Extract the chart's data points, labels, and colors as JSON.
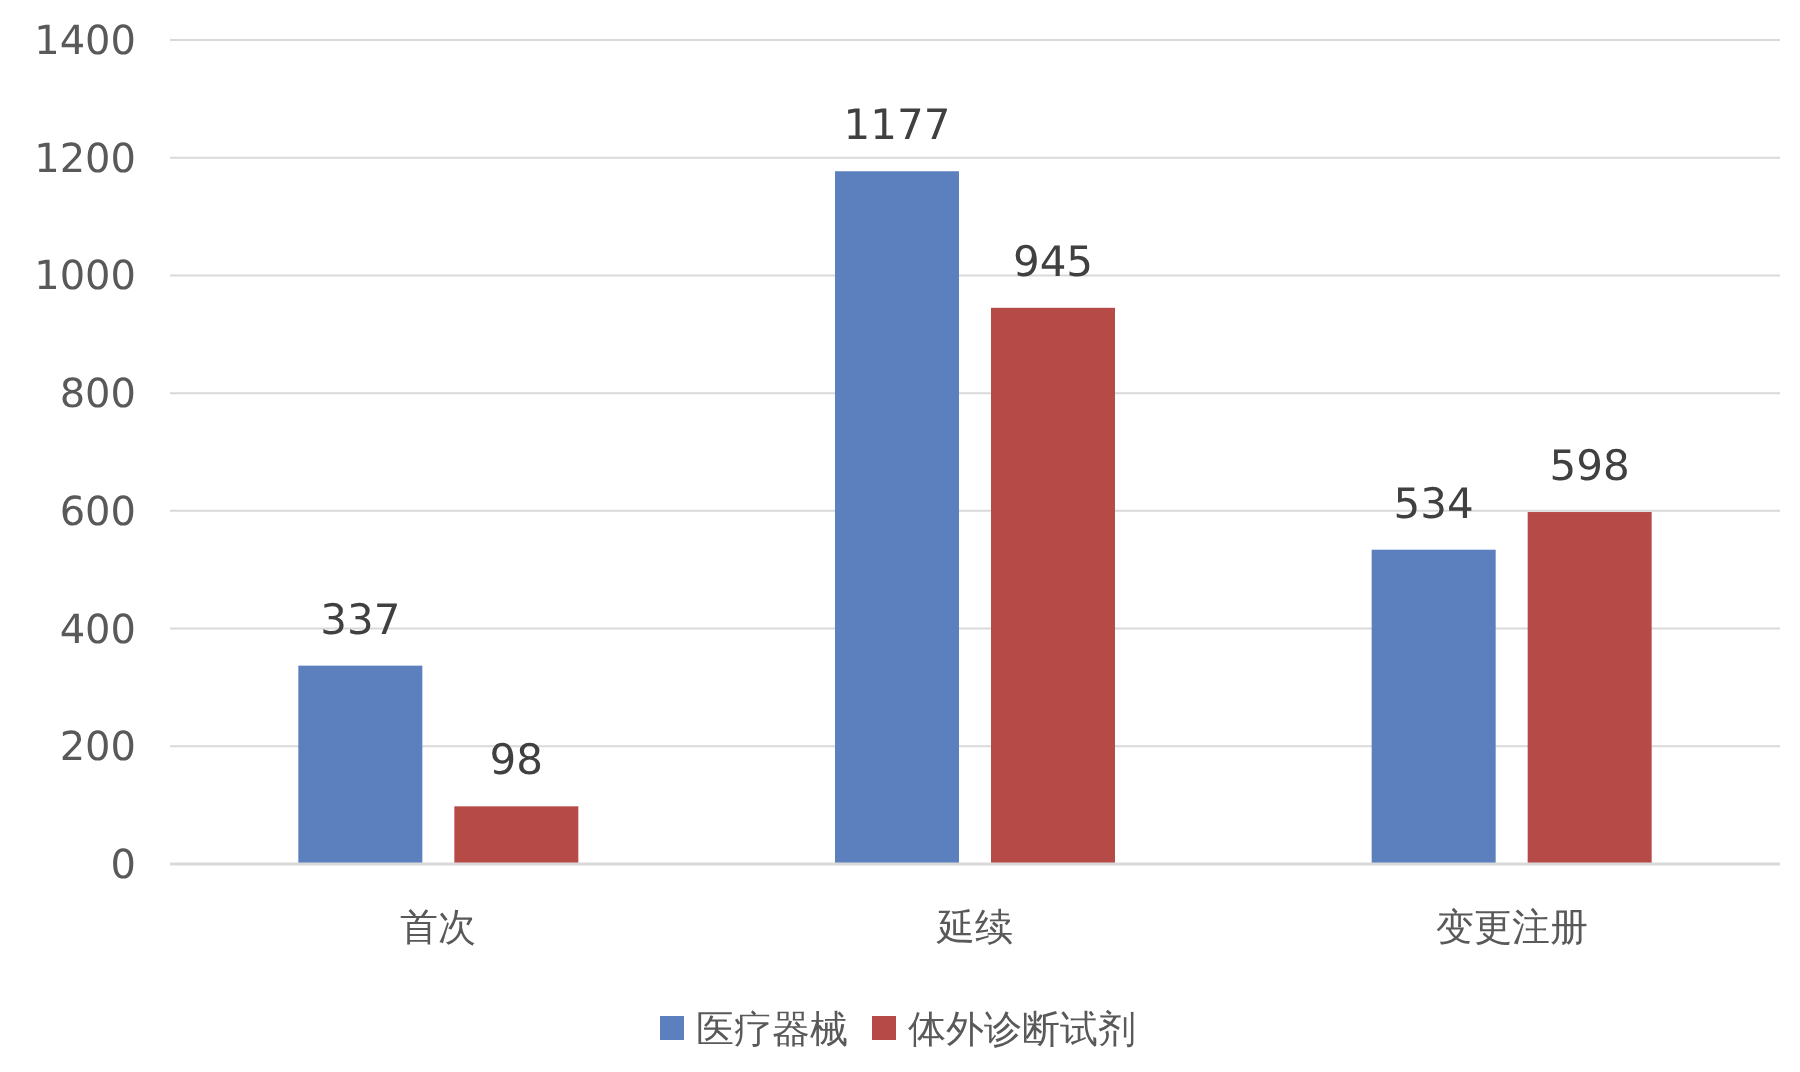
{
  "chart_data": {
    "type": "bar",
    "categories": [
      "首次",
      "延续",
      "变更注册"
    ],
    "series": [
      {
        "name": "医疗器械",
        "color": "#5b80bd",
        "values": [
          337,
          1177,
          534
        ]
      },
      {
        "name": "体外诊断试剂",
        "color": "#b64a47",
        "values": [
          98,
          945,
          598
        ]
      }
    ],
    "ylim": [
      0,
      1400
    ],
    "yticks": [
      0,
      200,
      400,
      600,
      800,
      1000,
      1200,
      1400
    ],
    "grid": "y",
    "legend": "bottom",
    "data_labels": true
  }
}
